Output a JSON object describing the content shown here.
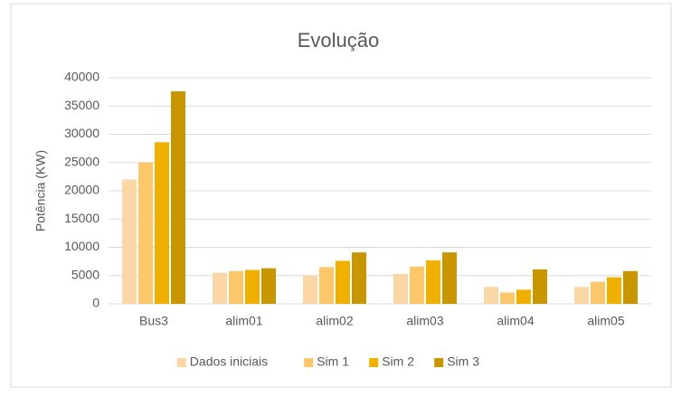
{
  "chart_data": {
    "type": "bar",
    "title": "Evolução",
    "y_label": "Potência (KW)",
    "categories": [
      "Bus3",
      "alim01",
      "alim02",
      "alim03",
      "alim04",
      "alim05"
    ],
    "series": [
      {
        "name": "Dados iniciais",
        "color": "#fbd7a5",
        "values": [
          22000,
          5500,
          5000,
          5300,
          3000,
          3000
        ]
      },
      {
        "name": "Sim 1",
        "color": "#fbc76a",
        "values": [
          25000,
          5800,
          6500,
          6600,
          2000,
          3900
        ]
      },
      {
        "name": "Sim 2",
        "color": "#f0b000",
        "values": [
          28600,
          6000,
          7600,
          7700,
          2500,
          4700
        ]
      },
      {
        "name": "Sim 3",
        "color": "#c89600",
        "values": [
          37600,
          6300,
          9100,
          9100,
          6100,
          5800
        ]
      }
    ],
    "ylim": [
      0,
      40000
    ],
    "yticks": [
      0,
      5000,
      10000,
      15000,
      20000,
      25000,
      30000,
      35000,
      40000
    ],
    "grid": true,
    "legend": "bottom"
  }
}
